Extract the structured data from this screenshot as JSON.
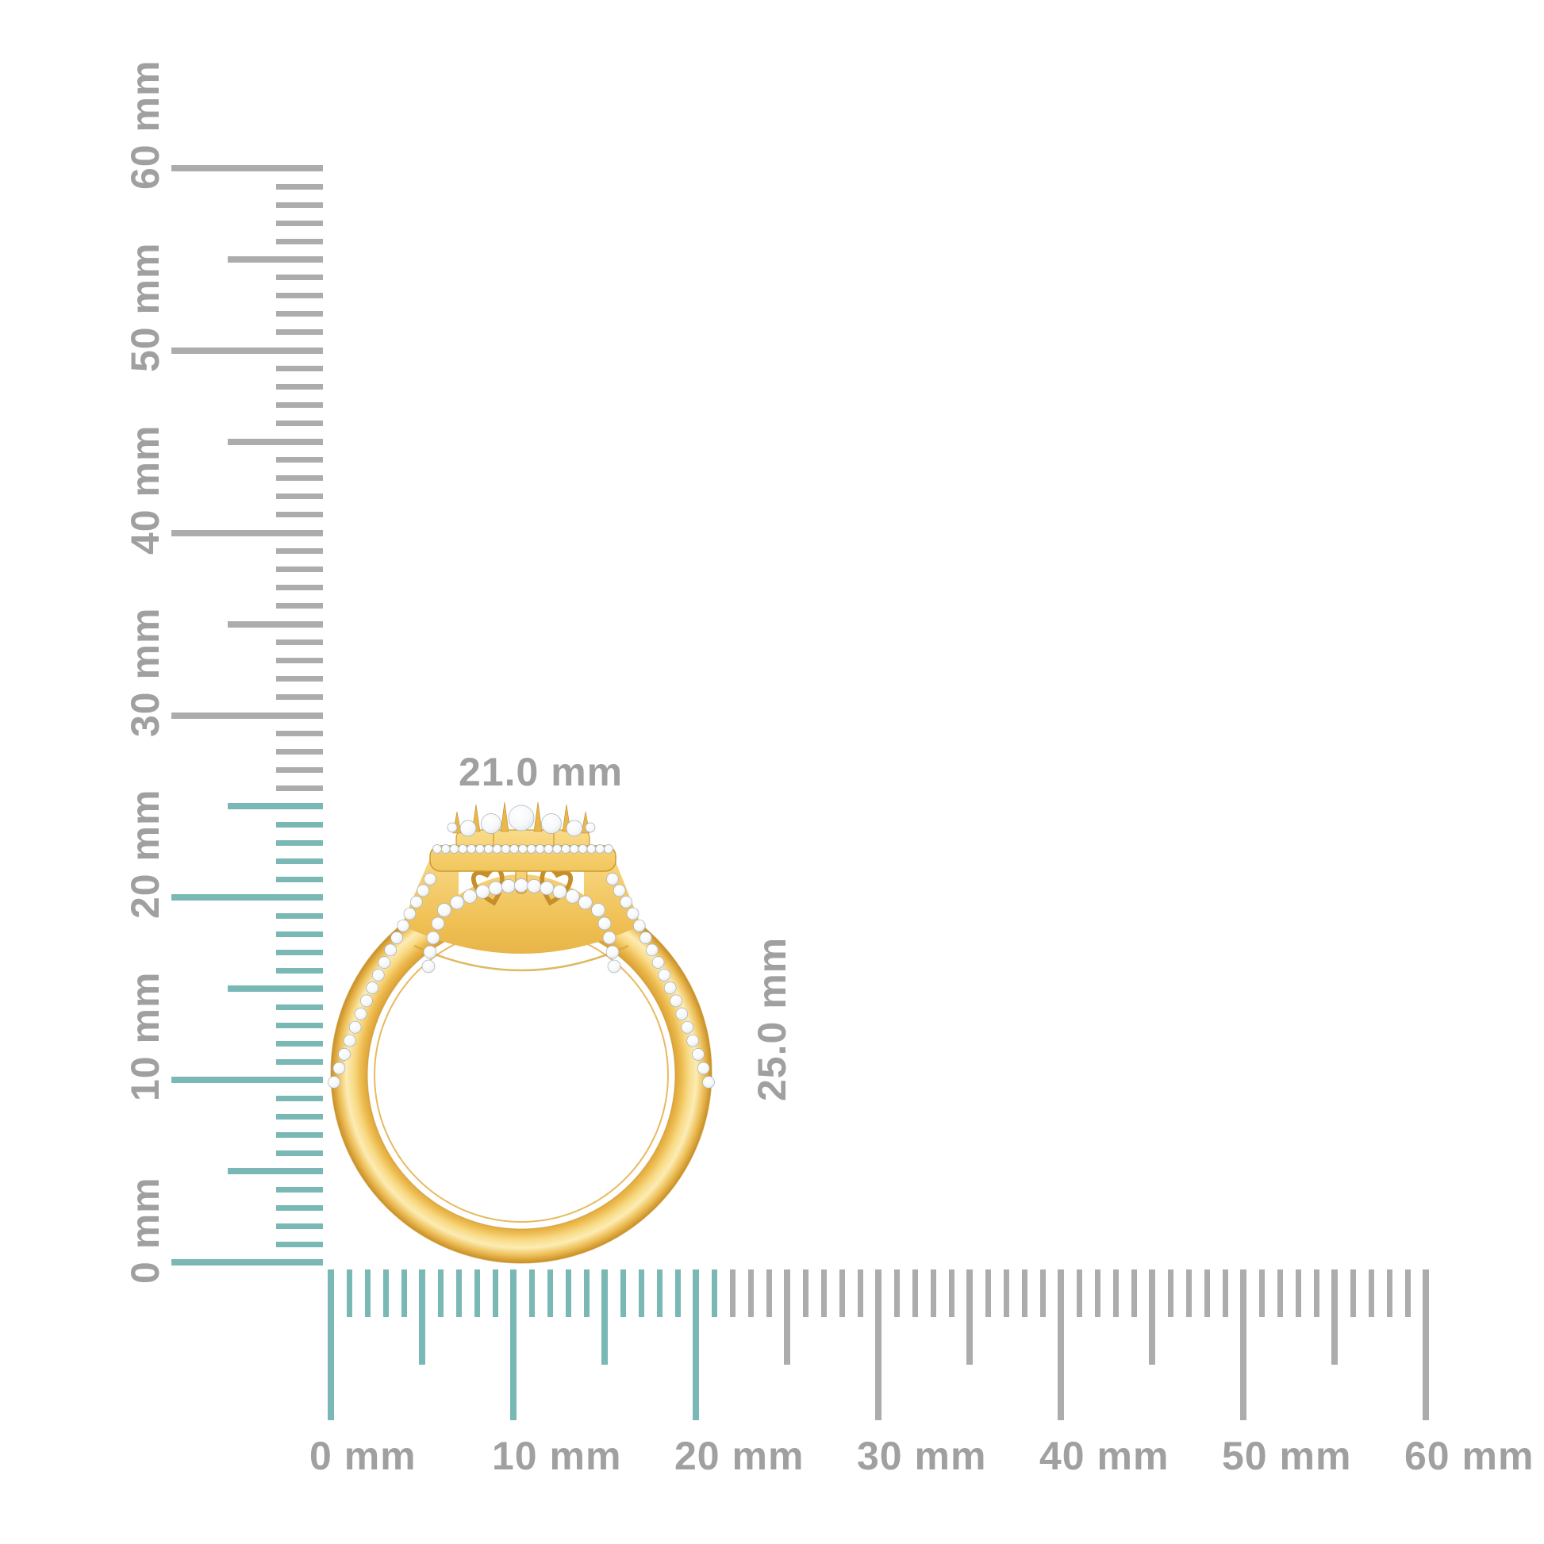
{
  "page": {
    "background": "#ffffff",
    "subject": "yellow-gold double-halo diamond ring, profile view, with millimeter rulers"
  },
  "unit": "mm",
  "rulers": {
    "vertical": {
      "min_mm": 0,
      "max_mm": 60,
      "major_step_mm": 10,
      "medium_step_mm": 5,
      "minor_step_mm": 1,
      "major_labels": [
        "0 mm",
        "10 mm",
        "20 mm",
        "30 mm",
        "40 mm",
        "50 mm",
        "60 mm"
      ],
      "highlight_max_mm": 25
    },
    "horizontal": {
      "min_mm": 0,
      "max_mm": 60,
      "major_step_mm": 10,
      "medium_step_mm": 5,
      "minor_step_mm": 1,
      "major_labels": [
        "0 mm",
        "10 mm",
        "20 mm",
        "30 mm",
        "40 mm",
        "50 mm",
        "60 mm"
      ],
      "highlight_max_mm": 21
    }
  },
  "dimensions": {
    "width_label": "21.0 mm",
    "height_label": "25.0 mm",
    "width_mm": 21.0,
    "height_mm": 25.0
  },
  "colors": {
    "highlight": "#79b8b4",
    "tick": "#acacac",
    "label": "#a0a0a0",
    "gold_light": "#fcecb4",
    "gold_mid": "#eec05a",
    "gold_dark": "#c98e24",
    "diamond": "#ffffff",
    "diamond_edge": "#a6b0bc"
  }
}
